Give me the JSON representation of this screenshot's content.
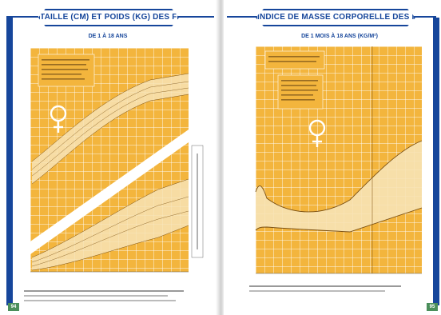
{
  "left_page": {
    "title": "TAILLE (CM) ET POIDS (KG) DES FILLES",
    "subtitle": "DE 1 À 18 ANS",
    "page_number": "94",
    "symbol_icon": "female-symbol"
  },
  "right_page": {
    "title": "INDICE DE MASSE CORPORELLE DES FILLES",
    "subtitle": "DE 1 MOIS À 18 ANS (KG/M²)",
    "page_number": "95",
    "symbol_icon": "female-symbol"
  },
  "colors": {
    "accent_blue": "#16469b",
    "chart_orange": "#f3b53d",
    "band_cream": "#f7e3b5",
    "page_number_green": "#4b8f5b"
  }
}
